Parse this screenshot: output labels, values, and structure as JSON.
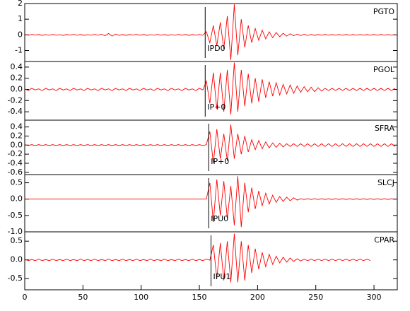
{
  "chart_data": {
    "type": "line",
    "color": "#ff0000",
    "xlim": [
      0,
      320
    ],
    "xticks": [
      0,
      50,
      100,
      150,
      200,
      250,
      300
    ],
    "x": [
      0,
      3,
      6,
      9,
      12,
      15,
      18,
      21,
      24,
      27,
      30,
      33,
      36,
      39,
      42,
      45,
      48,
      51,
      54,
      57,
      60,
      63,
      66,
      69,
      72,
      75,
      78,
      81,
      84,
      87,
      90,
      93,
      96,
      99,
      102,
      105,
      108,
      111,
      114,
      117,
      120,
      123,
      126,
      129,
      132,
      135,
      138,
      141,
      144,
      147,
      150,
      153,
      156,
      159,
      162,
      165,
      168,
      171,
      174,
      177,
      180,
      183,
      186,
      189,
      192,
      195,
      198,
      201,
      204,
      207,
      210,
      213,
      216,
      219,
      222,
      225,
      228,
      231,
      234,
      237,
      240,
      243,
      246,
      249,
      252,
      255,
      258,
      261,
      264,
      267,
      270,
      273,
      276,
      279,
      282,
      285,
      288,
      291,
      294,
      297,
      300,
      303,
      306,
      309,
      312,
      315,
      318
    ],
    "panels": [
      {
        "label": "PGTO",
        "pick": {
          "label": "IPD0",
          "x": 155
        },
        "ylim": [
          -1.7,
          2.0
        ],
        "yticks": [
          -1,
          0,
          1,
          2
        ],
        "values": [
          0.02,
          -0.02,
          0.03,
          -0.01,
          0.02,
          -0.03,
          0.01,
          -0.02,
          0.03,
          -0.02,
          0.01,
          -0.03,
          0.02,
          -0.01,
          0.03,
          -0.02,
          0.02,
          -0.03,
          0.01,
          -0.02,
          0.03,
          -0.02,
          0.04,
          -0.06,
          0.09,
          -0.08,
          0.05,
          -0.03,
          0.02,
          -0.03,
          0.02,
          -0.01,
          0.03,
          -0.02,
          0.02,
          -0.03,
          0.01,
          -0.02,
          0.03,
          -0.02,
          0.02,
          -0.03,
          0.01,
          -0.02,
          0.03,
          -0.02,
          0.02,
          -0.03,
          0.02,
          -0.02,
          0.03,
          -0.02,
          0.2,
          -0.5,
          0.6,
          -0.7,
          0.8,
          -0.9,
          1.2,
          -1.6,
          1.95,
          -1.3,
          1.0,
          -0.8,
          0.6,
          -0.5,
          0.4,
          -0.35,
          0.3,
          -0.25,
          0.2,
          -0.18,
          0.15,
          -0.12,
          0.1,
          -0.08,
          0.07,
          -0.06,
          0.05,
          -0.05,
          0.04,
          -0.04,
          0.03,
          -0.03,
          0.02,
          -0.02,
          0.02,
          -0.02,
          0.02,
          -0.02,
          0.02,
          -0.02,
          0.02,
          -0.02,
          0.02,
          -0.02,
          0.02,
          -0.02,
          0.02,
          -0.02,
          0.02,
          -0.02,
          0.02,
          -0.02,
          0.02,
          -0.02,
          0.02
        ]
      },
      {
        "label": "PGOL",
        "pick": {
          "label": "IP+0",
          "x": 155
        },
        "ylim": [
          -0.55,
          0.5
        ],
        "yticks": [
          -0.4,
          -0.2,
          {
            "value": 0,
            "label": "0.0"
          },
          0.2,
          0.4
        ],
        "values": [
          0.01,
          -0.02,
          0.02,
          -0.01,
          0.01,
          -0.02,
          0.02,
          -0.01,
          0.01,
          -0.02,
          0.02,
          -0.01,
          0.01,
          -0.02,
          0.02,
          -0.01,
          0.01,
          -0.02,
          0.02,
          -0.01,
          0.01,
          -0.02,
          0.02,
          -0.01,
          0.01,
          -0.02,
          0.02,
          -0.01,
          0.01,
          -0.02,
          0.02,
          -0.01,
          0.01,
          -0.02,
          0.02,
          -0.01,
          0.01,
          -0.02,
          0.02,
          -0.01,
          0.01,
          -0.02,
          0.02,
          -0.01,
          0.01,
          -0.02,
          0.02,
          -0.01,
          0.01,
          -0.02,
          0.02,
          -0.01,
          0.15,
          -0.25,
          0.3,
          -0.35,
          0.3,
          -0.4,
          0.35,
          -0.45,
          0.48,
          -0.4,
          0.35,
          -0.3,
          0.28,
          -0.25,
          0.2,
          -0.22,
          0.18,
          -0.15,
          0.14,
          -0.12,
          0.12,
          -0.1,
          0.09,
          -0.08,
          0.08,
          -0.07,
          0.06,
          -0.05,
          0.05,
          -0.04,
          0.04,
          -0.04,
          0.03,
          -0.03,
          0.02,
          -0.02,
          0.02,
          -0.02,
          0.02,
          -0.02,
          0.02,
          -0.02,
          0.02,
          -0.02,
          0.02,
          -0.02,
          0.02,
          -0.02,
          0.02,
          -0.02,
          0.02,
          -0.02,
          0.02,
          -0.02,
          0.02
        ]
      },
      {
        "label": "SFRA",
        "pick": {
          "label": "IP+0",
          "x": 158
        },
        "ylim": [
          -0.65,
          0.55
        ],
        "yticks": [
          -0.6,
          -0.4,
          -0.2,
          {
            "value": 0,
            "label": "0.0"
          },
          0.2,
          0.4
        ],
        "values": [
          0.01,
          -0.01,
          0.01,
          -0.01,
          0.01,
          -0.01,
          0.01,
          -0.01,
          0.01,
          -0.01,
          0.01,
          -0.01,
          0.01,
          -0.01,
          0.01,
          -0.01,
          0.01,
          -0.01,
          0.01,
          -0.01,
          0.01,
          -0.01,
          0.01,
          -0.01,
          0.01,
          -0.01,
          0.01,
          -0.01,
          0.01,
          -0.01,
          0.01,
          -0.01,
          0.01,
          -0.01,
          0.01,
          -0.01,
          0.01,
          -0.01,
          0.01,
          -0.01,
          0.01,
          -0.01,
          0.01,
          -0.01,
          0.01,
          -0.01,
          0.01,
          -0.01,
          0.01,
          -0.01,
          0.01,
          -0.01,
          0.01,
          0.3,
          -0.4,
          0.35,
          -0.3,
          0.25,
          -0.35,
          0.45,
          -0.3,
          0.25,
          -0.2,
          0.2,
          -0.15,
          0.12,
          -0.1,
          0.1,
          -0.08,
          0.07,
          -0.06,
          0.05,
          -0.05,
          0.04,
          -0.04,
          0.03,
          -0.03,
          0.03,
          -0.03,
          0.03,
          -0.03,
          0.03,
          -0.03,
          0.03,
          -0.03,
          0.03,
          -0.03,
          0.03,
          -0.03,
          0.03,
          -0.03,
          0.03,
          -0.03,
          0.03,
          -0.03,
          0.03,
          -0.03,
          0.03,
          -0.03,
          0.03,
          -0.03,
          0.03,
          -0.03,
          0.03,
          -0.03,
          0.03,
          -0.03
        ]
      },
      {
        "label": "SLCJ",
        "pick": {
          "label": "IPU0",
          "x": 158
        },
        "ylim": [
          -1.0,
          0.75
        ],
        "yticks": [
          {
            "value": -1,
            "label": "-1.0"
          },
          -0.5,
          {
            "value": 0,
            "label": "0.0"
          },
          0.5
        ],
        "values": [
          0,
          0,
          0,
          0,
          0,
          0,
          0,
          0,
          0,
          0,
          0,
          0,
          0,
          0,
          0,
          0,
          0,
          0,
          0,
          0,
          0,
          0,
          0,
          0,
          0,
          0,
          0,
          0,
          0,
          0,
          0,
          0,
          0,
          0,
          0,
          0,
          0,
          0,
          0,
          0,
          0,
          0,
          0,
          0,
          0,
          0,
          0,
          0,
          0,
          0,
          0,
          0,
          0,
          0.5,
          -0.7,
          0.6,
          -0.5,
          0.55,
          -0.6,
          0.4,
          -0.8,
          0.7,
          -0.85,
          0.5,
          -0.4,
          0.35,
          -0.3,
          0.25,
          -0.2,
          0.18,
          -0.15,
          0.12,
          -0.1,
          0.08,
          -0.07,
          0.06,
          -0.05,
          0.04,
          -0.03,
          0.01,
          -0.01,
          0.01,
          -0.01,
          0.01,
          -0.01,
          0.01,
          -0.01,
          0.01,
          -0.01,
          0.01,
          -0.01,
          0.01,
          -0.01,
          0.01,
          -0.01,
          0.01,
          -0.01,
          0.01,
          -0.01,
          0.01,
          -0.01,
          0.01,
          -0.01,
          0.01,
          -0.01,
          0.01,
          -0.01
        ]
      },
      {
        "label": "CPAR",
        "pick": {
          "label": "IPU1",
          "x": 160
        },
        "ylim": [
          -0.8,
          0.75
        ],
        "yticks": [
          -0.5,
          {
            "value": 0,
            "label": "0.0"
          },
          0.5
        ],
        "values": [
          0.02,
          -0.02,
          0.01,
          -0.02,
          0.02,
          -0.02,
          0.01,
          -0.02,
          0.02,
          -0.02,
          0.01,
          -0.02,
          0.02,
          -0.02,
          0.01,
          -0.02,
          0.02,
          -0.02,
          0.01,
          -0.02,
          0.02,
          -0.02,
          0.01,
          -0.02,
          0.02,
          -0.02,
          0.01,
          -0.02,
          0.02,
          -0.02,
          0.01,
          -0.02,
          0.02,
          -0.02,
          0.01,
          -0.02,
          0.02,
          -0.02,
          0.01,
          -0.02,
          0.02,
          -0.02,
          0.01,
          -0.02,
          0.02,
          -0.02,
          0.01,
          -0.02,
          0.02,
          -0.02,
          0.01,
          -0.02,
          0.02,
          -0.01,
          0.4,
          -0.5,
          0.45,
          -0.55,
          0.5,
          -0.6,
          0.7,
          -0.6,
          0.5,
          -0.55,
          0.4,
          -0.35,
          0.3,
          -0.25,
          0.2,
          -0.18,
          0.15,
          -0.12,
          0.1,
          -0.08,
          0.07,
          -0.06,
          0.05,
          -0.04,
          0.03,
          -0.03,
          0.02,
          -0.02,
          0.02,
          -0.02,
          0.02,
          -0.02,
          0.02,
          -0.02,
          0.02,
          -0.02,
          0.02,
          -0.02,
          0.02,
          -0.02,
          0.02,
          -0.02,
          0.02,
          -0.02,
          0.02,
          -0.02,
          null,
          null,
          null,
          null,
          null,
          null,
          null
        ]
      }
    ]
  }
}
